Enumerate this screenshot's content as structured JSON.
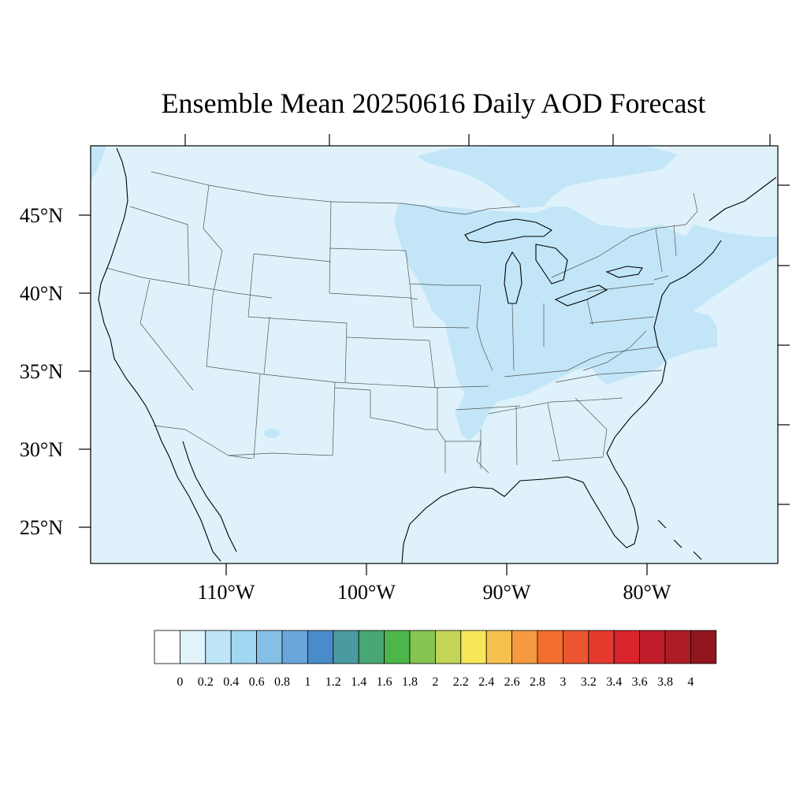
{
  "title": "Ensemble Mean 20250616 Daily AOD Forecast",
  "lat_labels": [
    "45°N",
    "40°N",
    "35°N",
    "30°N",
    "25°N"
  ],
  "lon_labels": [
    "110°W",
    "100°W",
    "90°W",
    "80°W"
  ],
  "colorbar": {
    "tick_labels": [
      "0",
      "0.2",
      "0.4",
      "0.6",
      "0.8",
      "1",
      "1.2",
      "1.4",
      "1.6",
      "1.8",
      "2",
      "2.2",
      "2.4",
      "2.6",
      "2.8",
      "3",
      "3.2",
      "3.4",
      "3.6",
      "3.8",
      "4"
    ],
    "colors": [
      "#ffffff",
      "#e1f3fb",
      "#bfe6f8",
      "#a0d8f3",
      "#86bfe6",
      "#6aa6db",
      "#4a8cc9",
      "#4a9ba0",
      "#49a775",
      "#4cb64a",
      "#86c550",
      "#c2d557",
      "#f7e65a",
      "#f7c04f",
      "#f59a40",
      "#f26e2f",
      "#ea5630",
      "#e33a2d",
      "#d9232d",
      "#c01d2a",
      "#ad1b24",
      "#92161d"
    ]
  },
  "field_colors": {
    "background": "#dff2fb",
    "elevated": "#c2e6f8",
    "coastline": "#000000",
    "state_lines": "#555555"
  }
}
